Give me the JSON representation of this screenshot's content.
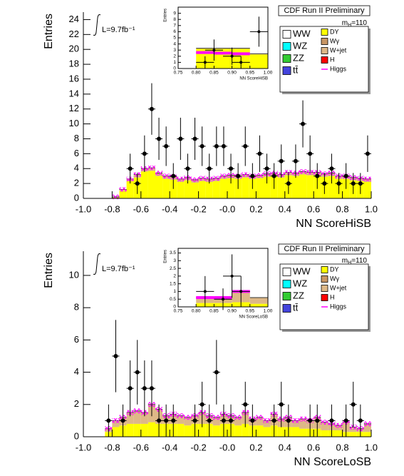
{
  "chart_data": [
    {
      "type": "histogram",
      "title": "CDF Run II Preliminary",
      "mass_label": {
        "symbol": "m",
        "subscript": "H",
        "value": "=110"
      },
      "annotation": "L=9.7fb⁻¹",
      "x_label": "NN ScoreHiSB",
      "y_label": "Entries",
      "xlim": [
        -1,
        1
      ],
      "ylim": [
        0,
        25
      ],
      "xticks": [
        {
          "value": -1,
          "label": "-1.0"
        },
        -0.8,
        -0.6,
        -0.4,
        -0.2,
        {
          "value": 0,
          "label": "-0.0"
        },
        0.2,
        0.4,
        0.6,
        0.8,
        {
          "value": 1,
          "label": "1.0"
        }
      ],
      "yticks": [
        0,
        2,
        4,
        6,
        8,
        10,
        12,
        14,
        16,
        18,
        20,
        22,
        24
      ],
      "bins": [
        -1,
        -0.95,
        -0.9,
        -0.85,
        -0.8,
        -0.75,
        -0.7,
        -0.65,
        -0.6,
        -0.55,
        -0.5,
        -0.45,
        -0.4,
        -0.35,
        -0.3,
        -0.25,
        -0.2,
        -0.15,
        -0.1,
        -0.05,
        0,
        0.05,
        0.1,
        0.15,
        0.2,
        0.25,
        0.3,
        0.35,
        0.4,
        0.45,
        0.5,
        0.55,
        0.6,
        0.65,
        0.7,
        0.75,
        0.8,
        0.85,
        0.9,
        0.95,
        1
      ],
      "stack": [
        {
          "color": "#ffff00",
          "values": [
            0,
            0,
            0,
            0,
            0.1,
            1.0,
            2.3,
            2.8,
            3.6,
            3.7,
            3.0,
            2.6,
            2.5,
            2.2,
            2.4,
            2.1,
            2.3,
            2.2,
            2.3,
            2.6,
            2.7,
            2.6,
            2.8,
            2.6,
            2.7,
            2.9,
            3.0,
            2.8,
            3.1,
            3.0,
            3.2,
            3.1,
            3.1,
            2.9,
            3.0,
            2.6,
            2.6,
            2.4,
            2.3,
            2.2
          ]
        },
        {
          "color": "#deb887",
          "values": [
            0,
            0,
            0,
            0,
            0.1,
            0.2,
            0.3,
            0.4,
            0.4,
            0.4,
            0.4,
            0.4,
            0.4,
            0.4,
            0.4,
            0.4,
            0.4,
            0.4,
            0.4,
            0.4,
            0.4,
            0.4,
            0.4,
            0.4,
            0.4,
            0.4,
            0.4,
            0.4,
            0.4,
            0.4,
            0.4,
            0.4,
            0.4,
            0.4,
            0.4,
            0.4,
            0.4,
            0.4,
            0.4,
            0.4
          ]
        }
      ],
      "band": {
        "color": "#ff00ff",
        "values": [
          0,
          0,
          0,
          0,
          0.3,
          0.3,
          0.3,
          0.3,
          0.3,
          0.3,
          0.3,
          0.3,
          0.3,
          0.3,
          0.3,
          0.3,
          0.3,
          0.3,
          0.3,
          0.3,
          0.3,
          0.3,
          0.3,
          0.3,
          0.3,
          0.3,
          0.3,
          0.3,
          0.3,
          0.3,
          0.3,
          0.3,
          0.3,
          0.3,
          0.3,
          0.3,
          0.3,
          0.3,
          0.3,
          0.3
        ]
      },
      "points": {
        "x": [
          -0.675,
          -0.625,
          -0.575,
          -0.525,
          -0.475,
          -0.425,
          -0.375,
          -0.325,
          -0.275,
          -0.225,
          -0.175,
          -0.125,
          -0.075,
          -0.025,
          0.025,
          0.075,
          0.125,
          0.175,
          0.225,
          0.275,
          0.325,
          0.375,
          0.425,
          0.475,
          0.525,
          0.575,
          0.625,
          0.675,
          0.725,
          0.775,
          0.825,
          0.875,
          0.925,
          0.975
        ],
        "y": [
          4,
          2,
          6,
          12,
          8,
          7,
          3,
          8,
          4,
          8,
          7,
          4,
          7,
          7,
          4,
          3,
          7,
          3,
          6,
          4,
          3,
          5,
          2,
          5,
          10,
          6,
          3,
          2,
          4,
          2,
          3,
          2,
          2,
          6
        ],
        "yerr": [
          2,
          1.41,
          2.45,
          3.46,
          2.83,
          2.65,
          1.73,
          2.83,
          2,
          2.83,
          2.65,
          2,
          2.65,
          2.65,
          2,
          1.73,
          2.65,
          1.73,
          2.45,
          2,
          1.73,
          2.24,
          1.41,
          2.24,
          3.16,
          2.45,
          1.73,
          1.41,
          2,
          1.41,
          1.73,
          1.41,
          1.41,
          2.45
        ]
      },
      "legend": [
        {
          "label": "WW",
          "color": "#ffffff"
        },
        {
          "label": "WZ",
          "color": "#00ffff"
        },
        {
          "label": "ZZ",
          "color": "#33cc33"
        },
        {
          "label": "tt̄",
          "color": "#4444dd"
        },
        {
          "label": "DY",
          "color": "#ffff00"
        },
        {
          "label": "Wγ",
          "color": "#c89664"
        },
        {
          "label": "W+jet",
          "color": "#deb887"
        },
        {
          "label": "H",
          "color": "#ff0000"
        },
        {
          "label": "Higgs",
          "color": "#ff00ff",
          "style": "line"
        }
      ]
    },
    {
      "type": "histogram",
      "x_label": "NN ScoreHiSB",
      "y_label": "Entries",
      "xlim": [
        0.75,
        1
      ],
      "ylim": [
        0,
        10
      ],
      "xticks": [
        0.75,
        {
          "value": 0.8,
          "label": "0.80"
        },
        0.85,
        {
          "value": 0.9,
          "label": "0.90"
        },
        0.95,
        {
          "value": 1,
          "label": "1.00"
        }
      ],
      "yticks": [
        0,
        1,
        2,
        3,
        4,
        5,
        6,
        7,
        8,
        9
      ],
      "bins": [
        0.75,
        0.8,
        0.85,
        0.9,
        0.95,
        1
      ],
      "stack": [
        {
          "color": "#ffff00",
          "values": [
            0,
            3.2,
            3.2,
            3.2,
            2.3
          ]
        },
        {
          "color": "#deb887",
          "values": [
            0,
            0.1,
            0.1,
            0.1,
            0.1
          ]
        }
      ],
      "line": {
        "color": "#ff00ff",
        "values": [
          null,
          2.6,
          2.5,
          2.4,
          null
        ]
      },
      "points": {
        "x": [
          0.825,
          0.85,
          0.9,
          0.925,
          0.975
        ],
        "y": [
          1,
          3,
          2,
          1,
          6
        ],
        "yerr": [
          1,
          1.73,
          1.41,
          1,
          2.45
        ]
      }
    },
    {
      "type": "histogram",
      "title": "CDF Run II Preliminary",
      "mass_label": {
        "symbol": "m",
        "subscript": "H",
        "value": "=110"
      },
      "annotation": "L=9.7fb⁻¹",
      "x_label": "NN ScoreLoSB",
      "y_label": "Entries",
      "xlim": [
        -1,
        1
      ],
      "ylim": [
        0,
        11.5
      ],
      "xticks": [
        {
          "value": -1,
          "label": "-1.0"
        },
        -0.8,
        -0.6,
        -0.4,
        -0.2,
        {
          "value": 0,
          "label": "-0.0"
        },
        0.2,
        0.4,
        0.6,
        0.8,
        {
          "value": 1,
          "label": "1.0"
        }
      ],
      "yticks": [
        0,
        2,
        4,
        6,
        8,
        10
      ],
      "bins": [
        -1,
        -0.95,
        -0.9,
        -0.85,
        -0.8,
        -0.75,
        -0.7,
        -0.65,
        -0.6,
        -0.55,
        -0.5,
        -0.45,
        -0.4,
        -0.35,
        -0.3,
        -0.25,
        -0.2,
        -0.15,
        -0.1,
        -0.05,
        0,
        0.05,
        0.1,
        0.15,
        0.2,
        0.25,
        0.3,
        0.35,
        0.4,
        0.45,
        0.5,
        0.55,
        0.6,
        0.65,
        0.7,
        0.75,
        0.8,
        0.85,
        0.9,
        0.95,
        1
      ],
      "stack": [
        {
          "color": "#ffff00",
          "values": [
            0,
            0,
            0,
            0.3,
            0.6,
            0.7,
            0.8,
            0.8,
            0.8,
            0.9,
            0.8,
            0.8,
            0.8,
            0.8,
            0.7,
            0.8,
            0.8,
            0.8,
            0.7,
            0.8,
            0.8,
            0.7,
            0.8,
            0.7,
            0.7,
            0.6,
            0.7,
            0.6,
            0.6,
            0.6,
            0.5,
            0.5,
            0.5,
            0.4,
            0.4,
            0.4,
            0.3,
            0.3,
            0.3,
            0.3
          ]
        },
        {
          "color": "#deb887",
          "values": [
            0,
            0,
            0,
            0.2,
            0.4,
            0.5,
            0.7,
            0.8,
            0.7,
            1.1,
            0.9,
            0.5,
            0.6,
            0.5,
            0.5,
            0.5,
            0.7,
            0.5,
            0.5,
            0.6,
            0.5,
            0.5,
            0.7,
            0.4,
            0.5,
            0.4,
            0.7,
            0.5,
            0.6,
            0.4,
            0.6,
            0.5,
            0.7,
            0.5,
            0.4,
            0.3,
            0.6,
            0.3,
            0.2,
            0.5
          ]
        }
      ],
      "band": {
        "color": "#ff00ff",
        "values": [
          0,
          0,
          0,
          0.15,
          0.15,
          0.15,
          0.15,
          0.15,
          0.15,
          0.15,
          0.15,
          0.15,
          0.15,
          0.15,
          0.15,
          0.15,
          0.15,
          0.15,
          0.15,
          0.15,
          0.15,
          0.15,
          0.15,
          0.15,
          0.15,
          0.15,
          0.15,
          0.15,
          0.15,
          0.15,
          0.15,
          0.15,
          0.15,
          0.15,
          0.15,
          0.15,
          0.15,
          0.15,
          0.15,
          0.15
        ]
      },
      "points": {
        "x": [
          -0.825,
          -0.775,
          -0.725,
          -0.675,
          -0.625,
          -0.575,
          -0.525,
          -0.475,
          -0.425,
          -0.375,
          -0.225,
          -0.175,
          -0.125,
          -0.075,
          -0.025,
          0.025,
          0.125,
          0.175,
          0.325,
          0.375,
          0.425,
          0.575,
          0.625,
          0.725,
          0.825,
          0.875,
          0.925
        ],
        "y": [
          1,
          5,
          1,
          3,
          4,
          3,
          3,
          1,
          1,
          1,
          1,
          2,
          1,
          4,
          1,
          1,
          2,
          1,
          1,
          2,
          1,
          1,
          1,
          1,
          1,
          2,
          1
        ],
        "yerr": [
          1,
          2.24,
          1,
          1.73,
          2,
          1.73,
          1.73,
          1,
          1,
          1,
          1,
          1.41,
          1,
          2,
          1,
          1,
          1.41,
          1,
          1,
          1.41,
          1,
          1,
          1,
          1,
          1,
          1.41,
          1
        ]
      },
      "legend": [
        {
          "label": "WW",
          "color": "#ffffff"
        },
        {
          "label": "WZ",
          "color": "#00ffff"
        },
        {
          "label": "ZZ",
          "color": "#33cc33"
        },
        {
          "label": "tt̄",
          "color": "#4444dd"
        },
        {
          "label": "DY",
          "color": "#ffff00"
        },
        {
          "label": "Wγ",
          "color": "#c89664"
        },
        {
          "label": "W+jet",
          "color": "#deb887"
        },
        {
          "label": "H",
          "color": "#ff0000"
        },
        {
          "label": "Higgs",
          "color": "#ff00ff",
          "style": "line"
        }
      ]
    },
    {
      "type": "histogram",
      "x_label": "NN ScoreLoSB",
      "y_label": "Entries",
      "xlim": [
        0.75,
        1
      ],
      "ylim": [
        0,
        3.8
      ],
      "xticks": [
        0.75,
        {
          "value": 0.8,
          "label": "0.80"
        },
        0.85,
        {
          "value": 0.9,
          "label": "0.90"
        },
        0.95,
        {
          "value": 1,
          "label": "1.00"
        }
      ],
      "yticks": [
        0,
        0.5,
        1,
        1.5,
        2,
        2.5,
        3,
        3.5
      ],
      "bins": [
        0.75,
        0.8,
        0.85,
        0.9,
        0.95,
        1
      ],
      "stack": [
        {
          "color": "#ffff00",
          "values": [
            0,
            0.25,
            0.25,
            0.3,
            0.2
          ]
        },
        {
          "color": "#deb887",
          "values": [
            0,
            0.35,
            0.35,
            0.7,
            0.4
          ]
        }
      ],
      "line": {
        "color": "#ff00ff",
        "values": [
          null,
          0.6,
          0.6,
          1.0,
          null
        ]
      },
      "points": {
        "x": [
          0.825,
          0.875,
          0.9,
          0.925
        ],
        "y": [
          1,
          0.5,
          2,
          1
        ],
        "yerr": [
          1,
          0.7,
          1.41,
          1
        ]
      }
    }
  ]
}
